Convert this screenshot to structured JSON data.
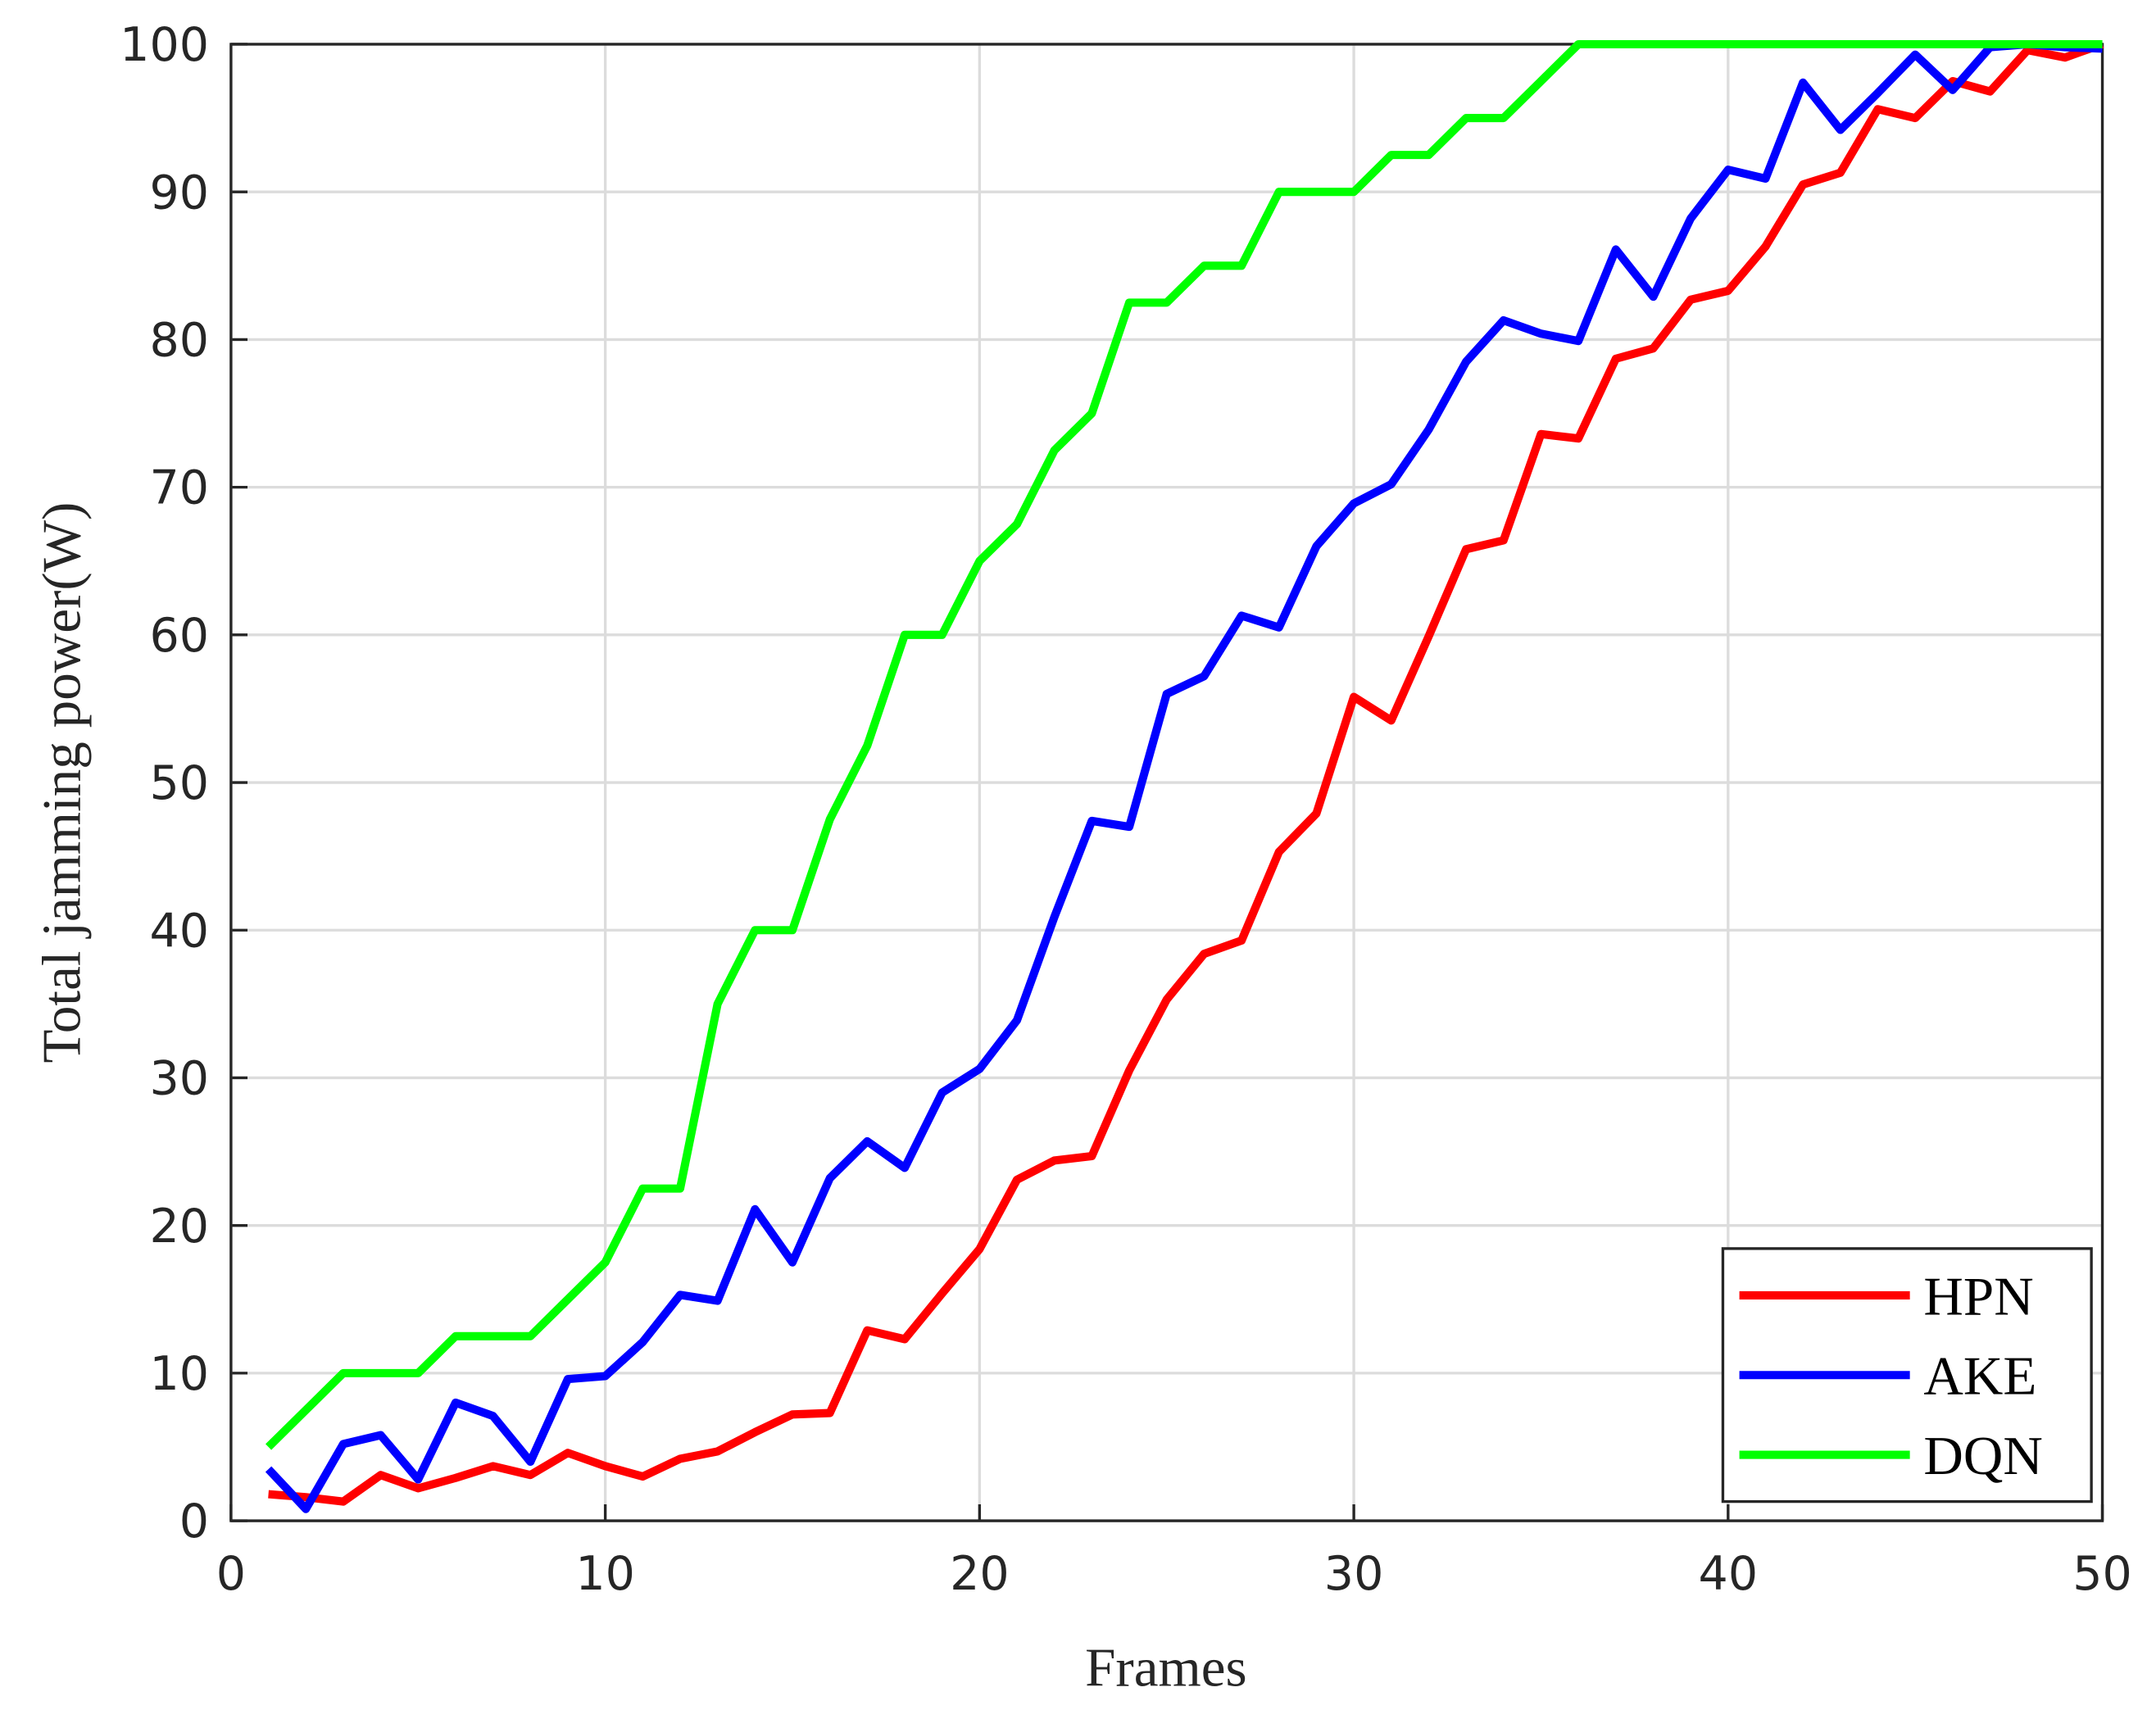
{
  "chart_data": {
    "type": "line",
    "xlabel": "Frames",
    "ylabel": "Total jamming power(W)",
    "x": [
      1,
      2,
      3,
      4,
      5,
      6,
      7,
      8,
      9,
      10,
      11,
      12,
      13,
      14,
      15,
      16,
      17,
      18,
      19,
      20,
      21,
      22,
      23,
      24,
      25,
      26,
      27,
      28,
      29,
      30,
      31,
      32,
      33,
      34,
      35,
      36,
      37,
      38,
      39,
      40,
      41,
      42,
      43,
      44,
      45,
      46,
      47,
      48,
      49,
      50
    ],
    "series": [
      {
        "name": "HPN",
        "color": "#ff0000",
        "values": [
          1.8,
          1.6,
          1.3,
          3.1,
          2.2,
          2.9,
          3.7,
          3.1,
          4.6,
          3.7,
          3.0,
          4.2,
          4.7,
          6.0,
          7.2,
          7.3,
          12.9,
          12.3,
          15.4,
          18.4,
          23.1,
          24.4,
          24.7,
          30.5,
          35.3,
          38.4,
          39.3,
          45.3,
          47.9,
          55.8,
          54.2,
          59.9,
          65.8,
          66.4,
          73.6,
          73.3,
          78.7,
          79.4,
          82.7,
          83.3,
          86.3,
          90.5,
          91.3,
          95.6,
          95.0,
          97.5,
          96.8,
          99.6,
          99.1,
          100
        ]
      },
      {
        "name": "AKE",
        "color": "#0000ff",
        "values": [
          3.5,
          0.8,
          5.2,
          5.8,
          2.8,
          8.0,
          7.1,
          4.0,
          9.6,
          9.8,
          12.1,
          15.3,
          14.9,
          21.1,
          17.5,
          23.2,
          25.7,
          23.9,
          29.0,
          30.6,
          33.9,
          40.9,
          47.4,
          47.0,
          56.0,
          57.2,
          61.3,
          60.5,
          66.0,
          68.9,
          70.2,
          73.9,
          78.5,
          81.3,
          80.4,
          79.9,
          86.1,
          82.9,
          88.2,
          91.5,
          90.9,
          97.4,
          94.2,
          96.7,
          99.3,
          96.9,
          99.8,
          100,
          99.8,
          99.7
        ]
      },
      {
        "name": "DQN",
        "color": "#00ff00",
        "values": [
          5,
          7.5,
          10,
          10,
          10,
          12.5,
          12.5,
          12.5,
          15,
          17.5,
          22.5,
          22.5,
          35,
          40,
          40,
          47.5,
          52.5,
          60,
          60,
          65,
          67.5,
          72.5,
          75,
          82.5,
          82.5,
          85,
          85,
          90,
          90,
          90,
          92.5,
          92.5,
          95,
          95,
          97.5,
          100,
          100,
          100,
          100,
          100,
          100,
          100,
          100,
          100,
          100,
          100,
          100,
          100,
          100,
          100
        ]
      }
    ],
    "xlim": [
      0,
      50
    ],
    "xticks": [
      0,
      10,
      20,
      30,
      40,
      50
    ],
    "ylim": [
      0,
      100
    ],
    "yticks": [
      0,
      10,
      20,
      30,
      40,
      50,
      60,
      70,
      80,
      90,
      100
    ],
    "grid": true,
    "legend": "lower right"
  }
}
